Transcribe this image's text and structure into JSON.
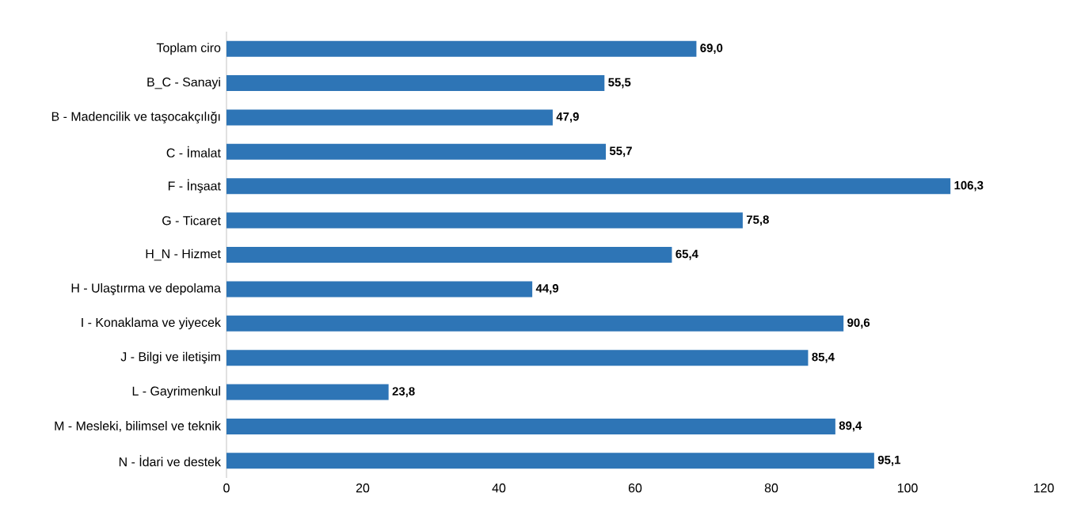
{
  "chart_data": {
    "type": "bar",
    "orientation": "horizontal",
    "categories": [
      "Toplam ciro",
      "B_C - Sanayi",
      "B - Madencilik ve taşocakçılığı",
      "C - İmalat",
      "F - İnşaat",
      "G - Ticaret",
      "H_N - Hizmet",
      "H - Ulaştırma ve depolama",
      "I - Konaklama ve yiyecek",
      "J - Bilgi ve iletişim",
      "L - Gayrimenkul",
      "M - Mesleki, bilimsel ve teknik",
      "N - İdari ve destek"
    ],
    "values": [
      69.0,
      55.5,
      47.9,
      55.7,
      106.3,
      75.8,
      65.4,
      44.9,
      90.6,
      85.4,
      23.8,
      89.4,
      95.1
    ],
    "value_labels": [
      "69,0",
      "55,5",
      "47,9",
      "55,7",
      "106,3",
      "75,8",
      "65,4",
      "44,9",
      "90,6",
      "85,4",
      "23,8",
      "89,4",
      "95,1"
    ],
    "color": "#2e75b6",
    "xlim": [
      0,
      120
    ],
    "xticks": [
      0,
      20,
      40,
      60,
      80,
      100,
      120
    ]
  }
}
